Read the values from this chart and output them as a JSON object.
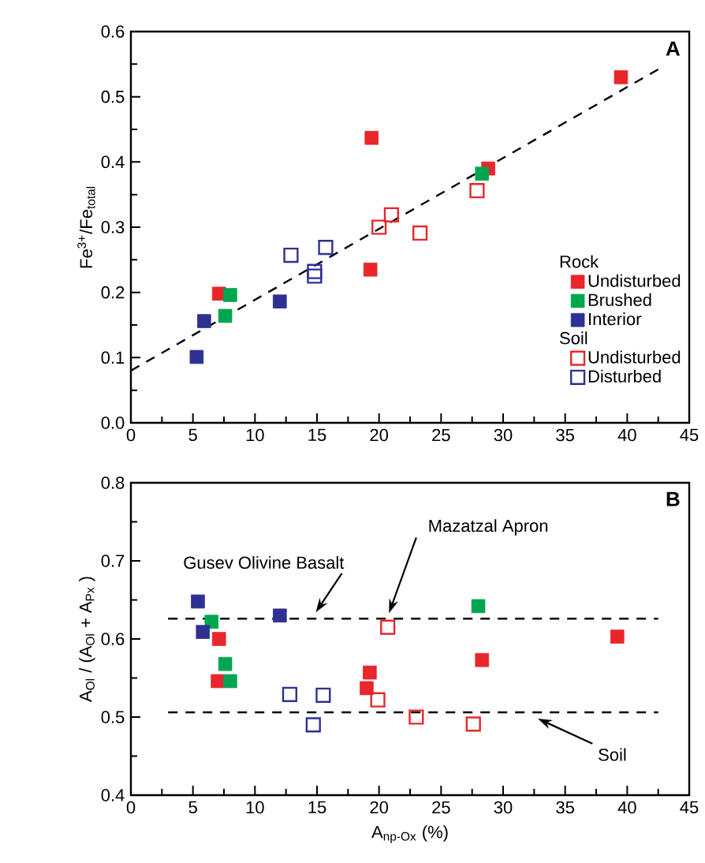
{
  "chart_data": [
    {
      "type": "scatter",
      "ylabel": "Fe$^{3+}$/Fe$_{total}$",
      "legend_title": "Rock",
      "legend": "bottom right",
      "annotations": [
        "A",
        "Soil"
      ],
      "xlim": [
        0,
        45
      ],
      "xticks": [
        0,
        5,
        10,
        15,
        20,
        25,
        30,
        35,
        40,
        45
      ],
      "ylim": [
        0,
        0.6
      ],
      "yticks": [
        {
          "value": 0,
          "label": "0.0"
        },
        0.1,
        0.2,
        0.3,
        0.4,
        0.5,
        0.6
      ],
      "series": [
        {
          "name": "Undisturbed",
          "color": "#e8262b",
          "marker": "square",
          "x": [
            7.1,
            19.4,
            19.3,
            28.8,
            39.5
          ],
          "values": [
            0.198,
            0.437,
            0.235,
            0.39,
            0.53
          ]
        },
        {
          "name": "Brushed",
          "color": "#00a64f",
          "marker": "square",
          "x": [
            8.0,
            7.6,
            28.3
          ],
          "values": [
            0.196,
            0.164,
            0.382
          ]
        },
        {
          "name": "Interior",
          "color": "#2e3192",
          "marker": "square",
          "x": [
            5.3,
            5.9,
            12.0
          ],
          "values": [
            0.101,
            0.156,
            0.186
          ]
        },
        {
          "name": "Undisturbed",
          "color": "#e8262b",
          "marker": "square_open",
          "x": [
            20.0,
            21.0,
            23.3,
            27.9
          ],
          "values": [
            0.3,
            0.319,
            0.291,
            0.356
          ]
        },
        {
          "name": "Disturbed",
          "color": "#2e3192",
          "marker": "square_open",
          "x": [
            12.9,
            14.8,
            14.8,
            15.7
          ],
          "values": [
            0.257,
            0.225,
            0.232,
            0.269
          ]
        },
        {
          "type": "line",
          "color": "#000000",
          "line_style": "dashed",
          "marker": "none",
          "x": [
            0,
            42.5
          ],
          "values": [
            0.08,
            0.542
          ]
        }
      ]
    },
    {
      "type": "scatter",
      "xlabel": "A$_{np-Ox}$  (%)",
      "ylabel": "A$_{Ol}$ / (A$_{Ol}$ + A$_{Px}$ )",
      "legend": false,
      "annotations": [
        "B",
        "Mazatzal Apron"
      ],
      "xlim": [
        0,
        45
      ],
      "xticks": [
        0,
        5,
        10,
        15,
        20,
        25,
        30,
        35,
        40,
        45
      ],
      "ylim": [
        0.4,
        0.8
      ],
      "yticks": [
        0.4,
        0.5,
        0.6,
        0.7,
        0.8
      ],
      "ref_lines": [
        {
          "axis": "y",
          "value": 0.626,
          "label": "Gusev Olivine Basalt",
          "line_style": "dashed"
        },
        {
          "axis": "y",
          "value": 0.506,
          "label": "Soil",
          "line_style": "dashed"
        }
      ],
      "series": [
        {
          "color": "#e8262b",
          "marker": "square",
          "x": [
            7.1,
            7.0,
            19.25,
            19.0,
            28.3,
            39.2
          ],
          "values": [
            0.6,
            0.546,
            0.557,
            0.537,
            0.573,
            0.603
          ]
        },
        {
          "color": "#00a64f",
          "marker": "square",
          "x": [
            6.5,
            7.6,
            8.0,
            28.0
          ],
          "values": [
            0.622,
            0.568,
            0.546,
            0.642
          ]
        },
        {
          "color": "#2e3192",
          "marker": "square",
          "x": [
            5.4,
            5.8,
            12.0
          ],
          "values": [
            0.648,
            0.609,
            0.63
          ]
        },
        {
          "color": "#e8262b",
          "marker": "square_open",
          "x": [
            20.7,
            19.9,
            23.0,
            27.6
          ],
          "values": [
            0.615,
            0.522,
            0.5,
            0.491
          ]
        },
        {
          "color": "#2e3192",
          "marker": "square_open",
          "x": [
            12.8,
            15.5,
            14.7
          ],
          "values": [
            0.529,
            0.528,
            0.49
          ]
        }
      ]
    }
  ]
}
